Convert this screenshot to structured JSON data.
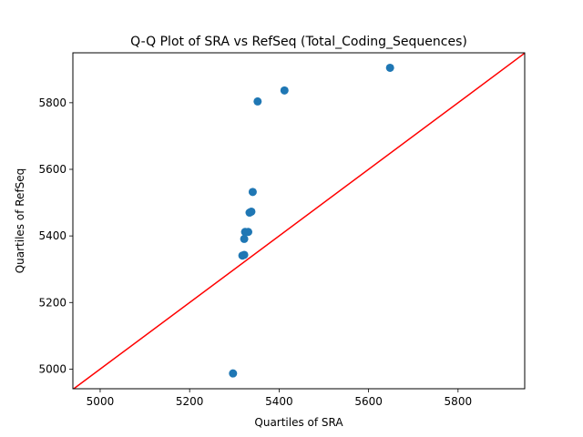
{
  "chart_data": {
    "type": "scatter",
    "title": "Q-Q Plot of SRA vs RefSeq (Total_Coding_Sequences)",
    "xlabel": "Quartiles of SRA",
    "ylabel": "Quartiles of RefSeq",
    "xlim": [
      4939,
      5949
    ],
    "ylim": [
      4941,
      5950
    ],
    "xticks": [
      5000,
      5200,
      5400,
      5600,
      5800
    ],
    "yticks": [
      5000,
      5200,
      5400,
      5600,
      5800
    ],
    "grid": false,
    "legend": "none",
    "points": [
      {
        "x": 5297,
        "y": 4987
      },
      {
        "x": 5318,
        "y": 5341
      },
      {
        "x": 5322,
        "y": 5343
      },
      {
        "x": 5322,
        "y": 5391
      },
      {
        "x": 5324,
        "y": 5412
      },
      {
        "x": 5331,
        "y": 5412
      },
      {
        "x": 5334,
        "y": 5470
      },
      {
        "x": 5338,
        "y": 5473
      },
      {
        "x": 5341,
        "y": 5532
      },
      {
        "x": 5352,
        "y": 5804
      },
      {
        "x": 5412,
        "y": 5837
      },
      {
        "x": 5648,
        "y": 5905
      }
    ],
    "reference_line": {
      "from": [
        4939,
        4939
      ],
      "to": [
        5949,
        5949
      ]
    },
    "colors": {
      "points": "#1f77b4",
      "reference_line": "#ff0000",
      "axes": "#000000"
    }
  }
}
